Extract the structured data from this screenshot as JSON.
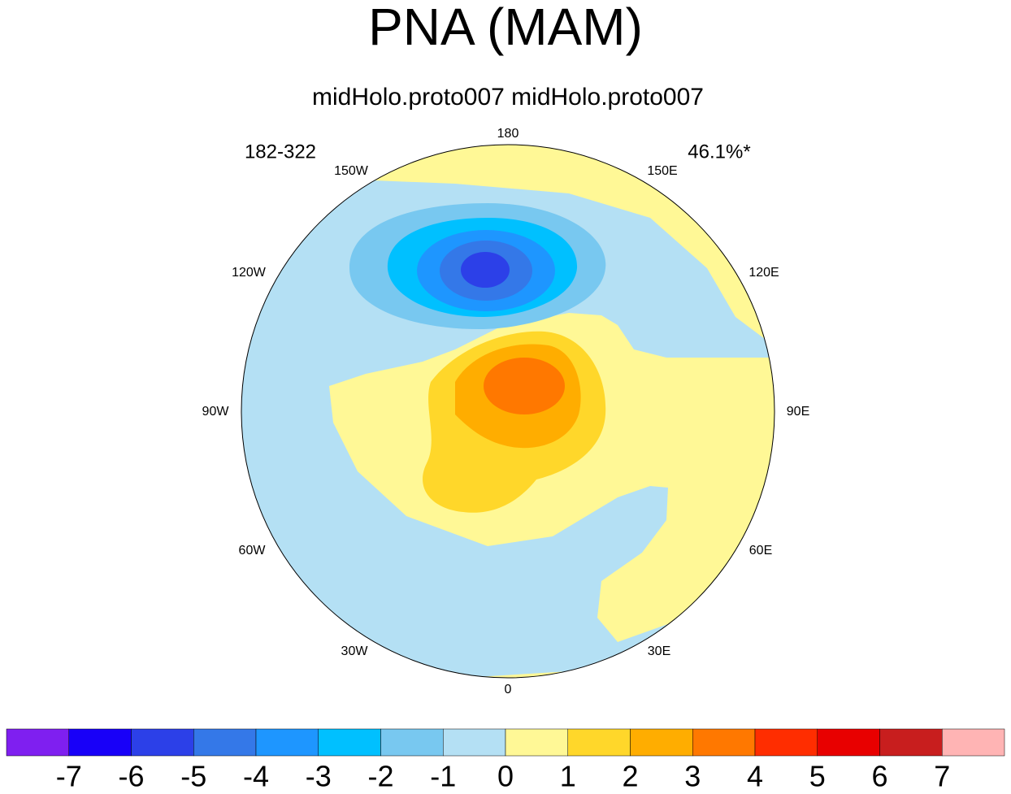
{
  "title": "PNA (MAM)",
  "subtitle": "midHolo.proto007  midHolo.proto007",
  "left_label": "182-322",
  "right_label": "46.1%*",
  "longitude_labels": [
    "180",
    "150E",
    "120E",
    "90E",
    "60E",
    "30E",
    "0",
    "30W",
    "60W",
    "90W",
    "120W",
    "150W"
  ],
  "colorbar": {
    "colors": [
      "#7f1ff0",
      "#1800f8",
      "#2c40e8",
      "#3478e8",
      "#1e96ff",
      "#00c0ff",
      "#78c8f0",
      "#b4e0f4",
      "#fff896",
      "#ffd72a",
      "#ffad00",
      "#ff7800",
      "#ff2d00",
      "#e80000",
      "#c81e1e",
      "#ffb4b4"
    ],
    "labels": [
      -7,
      -6,
      -5,
      -4,
      -3,
      -2,
      -1,
      0,
      1,
      2,
      3,
      4,
      5,
      6,
      7
    ]
  }
}
